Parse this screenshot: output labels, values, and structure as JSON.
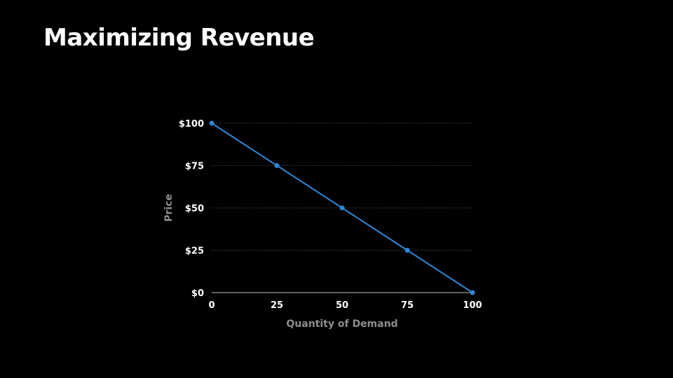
{
  "slide": {
    "title": "Maximizing Revenue"
  },
  "chart_data": {
    "type": "line",
    "title": "",
    "xlabel": "Quantity of Demand",
    "ylabel": "Price",
    "x": [
      0,
      25,
      50,
      75,
      100
    ],
    "series": [
      {
        "values": [
          100,
          75,
          50,
          25,
          0
        ]
      }
    ],
    "xlim": [
      0,
      100
    ],
    "ylim": [
      0,
      100
    ],
    "xticks": [
      "0",
      "25",
      "50",
      "75",
      "100"
    ],
    "yticks": [
      "$0",
      "$25",
      "$50",
      "$75",
      "$100"
    ],
    "grid": true,
    "colors": {
      "line": "#2e86d6",
      "grid": "#5a5a5a",
      "axis": "#bdbdbd"
    }
  }
}
